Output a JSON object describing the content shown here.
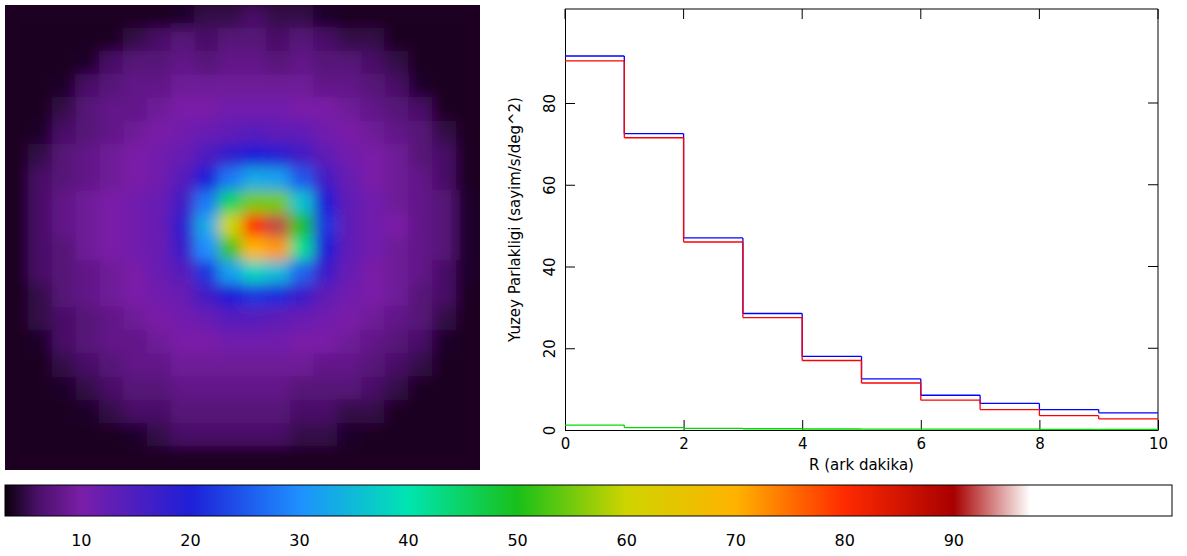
{
  "chart_data": [
    {
      "type": "heatmap",
      "cells": [
        [
          0,
          0,
          0,
          0,
          0,
          0,
          0,
          4,
          5,
          5,
          6,
          5,
          5,
          4,
          0,
          0,
          0,
          0,
          0,
          0
        ],
        [
          0,
          0,
          0,
          0,
          0,
          5,
          6,
          7,
          6,
          7,
          7,
          6,
          7,
          6,
          5,
          5,
          0,
          0,
          0,
          0
        ],
        [
          0,
          0,
          0,
          4,
          6,
          7,
          7,
          8,
          7,
          8,
          8,
          7,
          8,
          7,
          7,
          6,
          5,
          0,
          0,
          0
        ],
        [
          0,
          0,
          4,
          6,
          7,
          8,
          8,
          9,
          9,
          9,
          9,
          9,
          9,
          8,
          8,
          7,
          6,
          4,
          0,
          0
        ],
        [
          0,
          0,
          5,
          7,
          8,
          8,
          9,
          10,
          10,
          11,
          11,
          11,
          10,
          10,
          9,
          8,
          7,
          6,
          0,
          0
        ],
        [
          0,
          4,
          6,
          7,
          8,
          9,
          10,
          11,
          12,
          13,
          14,
          13,
          13,
          11,
          10,
          9,
          8,
          7,
          5,
          0
        ],
        [
          0,
          5,
          7,
          8,
          9,
          10,
          11,
          12,
          15,
          18,
          20,
          19,
          16,
          13,
          11,
          10,
          9,
          7,
          6,
          0
        ],
        [
          0,
          6,
          7,
          8,
          9,
          10,
          11,
          14,
          20,
          28,
          33,
          32,
          25,
          16,
          12,
          10,
          9,
          8,
          6,
          0
        ],
        [
          0,
          6,
          8,
          9,
          10,
          11,
          12,
          16,
          28,
          45,
          55,
          55,
          36,
          20,
          13,
          11,
          9,
          8,
          7,
          4
        ],
        [
          0,
          6,
          8,
          9,
          10,
          11,
          12,
          18,
          33,
          60,
          80,
          92,
          50,
          22,
          13,
          11,
          10,
          8,
          7,
          4
        ],
        [
          0,
          6,
          7,
          9,
          10,
          11,
          12,
          17,
          30,
          52,
          70,
          72,
          42,
          20,
          13,
          11,
          9,
          8,
          7,
          4
        ],
        [
          0,
          6,
          7,
          8,
          9,
          10,
          12,
          14,
          22,
          32,
          38,
          35,
          26,
          17,
          12,
          10,
          9,
          8,
          6,
          4
        ],
        [
          0,
          5,
          7,
          8,
          9,
          10,
          11,
          12,
          16,
          20,
          22,
          21,
          17,
          13,
          11,
          10,
          9,
          7,
          6,
          0
        ],
        [
          0,
          5,
          6,
          7,
          8,
          9,
          10,
          11,
          12,
          14,
          14,
          13,
          12,
          11,
          10,
          9,
          8,
          7,
          5,
          0
        ],
        [
          0,
          4,
          6,
          7,
          8,
          8,
          9,
          10,
          10,
          11,
          11,
          11,
          10,
          10,
          9,
          8,
          7,
          6,
          4,
          0
        ],
        [
          0,
          0,
          5,
          6,
          7,
          8,
          8,
          9,
          9,
          9,
          9,
          9,
          9,
          8,
          8,
          7,
          6,
          5,
          0,
          0
        ],
        [
          0,
          0,
          4,
          5,
          6,
          7,
          7,
          8,
          8,
          8,
          8,
          8,
          7,
          7,
          7,
          6,
          5,
          0,
          0,
          0
        ],
        [
          0,
          0,
          0,
          4,
          5,
          6,
          6,
          7,
          7,
          7,
          7,
          7,
          6,
          6,
          5,
          5,
          0,
          0,
          0,
          0
        ],
        [
          0,
          0,
          0,
          0,
          0,
          4,
          5,
          6,
          6,
          6,
          6,
          6,
          5,
          5,
          4,
          0,
          0,
          0,
          0,
          0
        ],
        [
          0,
          0,
          0,
          0,
          0,
          0,
          0,
          0,
          0,
          0,
          0,
          0,
          0,
          0,
          0,
          0,
          0,
          0,
          0,
          0
        ]
      ],
      "colorbar_range": [
        3,
        110
      ],
      "colorbar_ticks": [
        10,
        20,
        30,
        40,
        50,
        60,
        70,
        80,
        90
      ]
    },
    {
      "type": "step",
      "x_label": "R (ark dakika)",
      "y_label": "Yuzey Parlakligi (sayim/s/deg^2)",
      "bins": [
        0,
        1,
        2,
        3,
        4,
        5,
        6,
        7,
        8,
        9,
        10
      ],
      "series": [
        {
          "color": "#0000ff",
          "values": [
            91.5,
            72.5,
            47,
            28.5,
            18,
            12.5,
            8.5,
            6.5,
            5,
            4.2
          ]
        },
        {
          "color": "#ff0000",
          "values": [
            90.3,
            71.5,
            46,
            27.5,
            17,
            11.5,
            7.3,
            5,
            3.5,
            2.7
          ]
        },
        {
          "color": "#00dd00",
          "values": [
            1.2,
            0.6,
            0.4,
            0.3,
            0.25,
            0.2,
            0.2,
            0.2,
            0.15,
            0.15
          ]
        }
      ],
      "xlim": [
        0,
        10
      ],
      "xticks": [
        0,
        2,
        4,
        6,
        8,
        10
      ],
      "ylim": [
        0,
        103
      ],
      "yticks": [
        0,
        20,
        40,
        60,
        80
      ]
    }
  ]
}
